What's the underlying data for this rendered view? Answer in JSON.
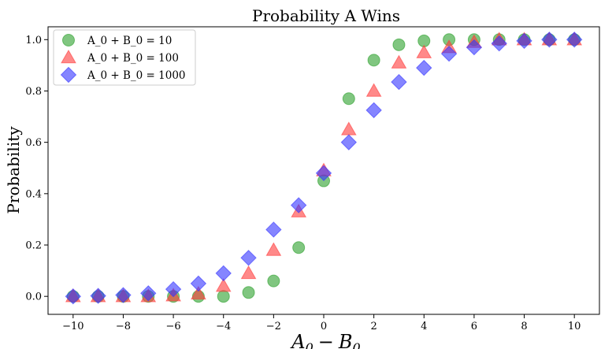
{
  "chart_data": {
    "type": "scatter",
    "title": "Probability A Wins",
    "xlabel": "A_0 - B_0",
    "xlabel_main": "A",
    "xlabel_sub1": "0",
    "xlabel_minus": "−",
    "xlabel_var2": "B",
    "xlabel_sub2": "0",
    "ylabel": "Probability",
    "xlim": [
      -11,
      11
    ],
    "ylim": [
      -0.07,
      1.05
    ],
    "xticks": [
      -10,
      -8,
      -6,
      -4,
      -2,
      0,
      2,
      4,
      6,
      8,
      10
    ],
    "xtick_labels": [
      "−10",
      "−8",
      "−6",
      "−4",
      "−2",
      "0",
      "2",
      "4",
      "6",
      "8",
      "10"
    ],
    "yticks": [
      0.0,
      0.2,
      0.4,
      0.6,
      0.8,
      1.0
    ],
    "ytick_labels": [
      "0.0",
      "0.2",
      "0.4",
      "0.6",
      "0.8",
      "1.0"
    ],
    "grid": false,
    "legend_position": "top-left",
    "x": [
      -10,
      -9,
      -8,
      -7,
      -6,
      -5,
      -4,
      -3,
      -2,
      -1,
      0,
      1,
      2,
      3,
      4,
      5,
      6,
      7,
      8,
      9,
      10
    ],
    "series": [
      {
        "name": "A_0 + B_0 = 10",
        "marker": "circle",
        "color": "#2ca02c",
        "values": [
          0.0,
          0.0,
          0.0,
          0.0,
          0.0,
          0.0,
          0.0,
          0.015,
          0.06,
          0.19,
          0.45,
          0.77,
          0.92,
          0.98,
          0.995,
          1.0,
          1.0,
          1.0,
          1.0,
          1.0,
          1.0
        ]
      },
      {
        "name": "A_0 + B_0 = 100",
        "marker": "triangle",
        "color": "#ff3b3b",
        "values": [
          0.0,
          0.0,
          0.0,
          0.0,
          0.003,
          0.01,
          0.04,
          0.09,
          0.18,
          0.33,
          0.49,
          0.65,
          0.8,
          0.91,
          0.95,
          0.97,
          0.99,
          1.0,
          1.0,
          1.0,
          1.0
        ]
      },
      {
        "name": "A_0 + B_0 = 1000",
        "marker": "diamond",
        "color": "#3333ff",
        "values": [
          0.0,
          0.002,
          0.005,
          0.012,
          0.028,
          0.05,
          0.09,
          0.15,
          0.26,
          0.355,
          0.48,
          0.6,
          0.725,
          0.835,
          0.89,
          0.945,
          0.97,
          0.985,
          0.995,
          1.0,
          1.0
        ]
      }
    ]
  }
}
